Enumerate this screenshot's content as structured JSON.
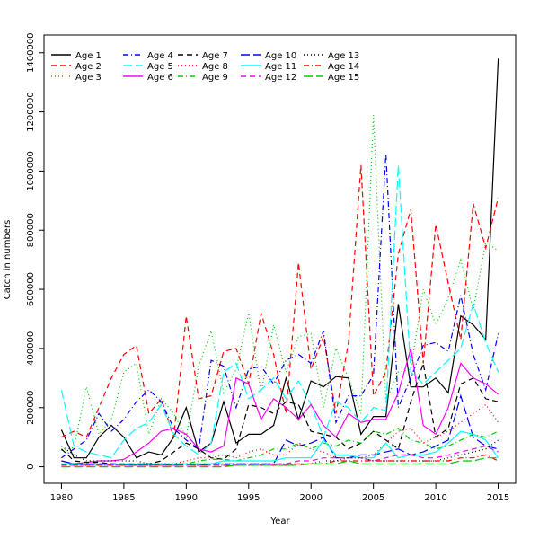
{
  "chart_data": {
    "type": "line",
    "title": "",
    "xlabel": "Year",
    "ylabel": "Catch in numbers",
    "xlim": [
      1978.6,
      2016.4
    ],
    "ylim": [
      -56000,
      1460000
    ],
    "x_ticks": [
      1980,
      1985,
      1990,
      1995,
      2000,
      2005,
      2010,
      2015
    ],
    "y_ticks": [
      0,
      200000,
      400000,
      600000,
      800000,
      1000000,
      1200000,
      1400000
    ],
    "grid": false,
    "legend_position": "top-left",
    "x": [
      1980,
      1981,
      1982,
      1983,
      1984,
      1985,
      1986,
      1987,
      1988,
      1989,
      1990,
      1991,
      1992,
      1993,
      1994,
      1995,
      1996,
      1997,
      1998,
      1999,
      2000,
      2001,
      2002,
      2003,
      2004,
      2005,
      2006,
      2007,
      2008,
      2009,
      2010,
      2011,
      2012,
      2013,
      2014,
      2015
    ],
    "series": [
      {
        "name": "Age 1",
        "color": "#000000",
        "dash": "",
        "values": [
          125000,
          30000,
          30000,
          100000,
          140000,
          100000,
          30000,
          50000,
          40000,
          100000,
          200000,
          50000,
          80000,
          220000,
          80000,
          110000,
          110000,
          140000,
          300000,
          160000,
          290000,
          270000,
          305000,
          300000,
          110000,
          170000,
          170000,
          550000,
          270000,
          270000,
          300000,
          250000,
          510000,
          480000,
          430000,
          1380000
        ]
      },
      {
        "name": "Age 2",
        "color": "#ff0000",
        "dash": "6,4",
        "values": [
          100000,
          120000,
          100000,
          200000,
          300000,
          380000,
          410000,
          180000,
          230000,
          100000,
          510000,
          230000,
          240000,
          390000,
          400000,
          280000,
          520000,
          380000,
          180000,
          690000,
          330000,
          440000,
          180000,
          420000,
          1020000,
          240000,
          320000,
          720000,
          870000,
          350000,
          820000,
          620000,
          430000,
          890000,
          740000,
          910000
        ]
      },
      {
        "name": "Age 3",
        "color": "#00cc00",
        "dash": "1,3",
        "values": [
          55000,
          65000,
          270000,
          110000,
          160000,
          320000,
          350000,
          110000,
          230000,
          180000,
          100000,
          340000,
          460000,
          250000,
          330000,
          520000,
          250000,
          480000,
          320000,
          440000,
          450000,
          200000,
          400000,
          300000,
          180000,
          1190000,
          220000,
          320000,
          330000,
          600000,
          480000,
          570000,
          700000,
          530000,
          760000,
          730000
        ]
      },
      {
        "name": "Age 4",
        "color": "#0000ff",
        "dash": "6,3,1,3",
        "values": [
          30000,
          60000,
          90000,
          180000,
          120000,
          160000,
          220000,
          260000,
          220000,
          130000,
          90000,
          60000,
          360000,
          340000,
          200000,
          330000,
          340000,
          280000,
          360000,
          380000,
          350000,
          460000,
          150000,
          240000,
          240000,
          310000,
          1060000,
          200000,
          300000,
          410000,
          420000,
          390000,
          580000,
          380000,
          260000,
          450000
        ]
      },
      {
        "name": "Age 5",
        "color": "#00ffff",
        "dash": "10,4",
        "values": [
          260000,
          70000,
          50000,
          40000,
          30000,
          90000,
          130000,
          150000,
          210000,
          110000,
          70000,
          40000,
          80000,
          320000,
          350000,
          230000,
          260000,
          300000,
          230000,
          290000,
          210000,
          100000,
          220000,
          200000,
          150000,
          200000,
          190000,
          1020000,
          320000,
          280000,
          320000,
          360000,
          400000,
          550000,
          420000,
          320000
        ]
      },
      {
        "name": "Age 6",
        "color": "#ff00ff",
        "dash": "",
        "values": [
          20000,
          10000,
          15000,
          20000,
          20000,
          25000,
          50000,
          80000,
          120000,
          130000,
          110000,
          60000,
          50000,
          70000,
          300000,
          280000,
          160000,
          230000,
          200000,
          160000,
          210000,
          140000,
          100000,
          180000,
          150000,
          160000,
          160000,
          250000,
          400000,
          140000,
          110000,
          200000,
          350000,
          300000,
          280000,
          245000
        ]
      },
      {
        "name": "Age 7",
        "color": "#000000",
        "dash": "6,4",
        "values": [
          60000,
          20000,
          15000,
          15000,
          10000,
          10000,
          10000,
          10000,
          20000,
          50000,
          80000,
          60000,
          30000,
          25000,
          60000,
          210000,
          200000,
          180000,
          220000,
          210000,
          120000,
          110000,
          100000,
          60000,
          80000,
          120000,
          90000,
          60000,
          220000,
          350000,
          100000,
          130000,
          280000,
          300000,
          230000,
          220000
        ]
      },
      {
        "name": "Age 8",
        "color": "#ff0000",
        "dash": "1,3",
        "values": [
          10000,
          10000,
          5000,
          5000,
          10000,
          10000,
          10000,
          10000,
          10000,
          10000,
          20000,
          30000,
          30000,
          40000,
          30000,
          50000,
          60000,
          40000,
          40000,
          80000,
          60000,
          50000,
          30000,
          30000,
          30000,
          40000,
          80000,
          120000,
          130000,
          80000,
          100000,
          120000,
          150000,
          180000,
          210000,
          150000
        ]
      },
      {
        "name": "Age 9",
        "color": "#00cc00",
        "dash": "6,3,1,3",
        "values": [
          5000,
          5000,
          5000,
          5000,
          5000,
          5000,
          5000,
          5000,
          5000,
          10000,
          10000,
          20000,
          25000,
          25000,
          20000,
          30000,
          40000,
          60000,
          60000,
          80000,
          60000,
          80000,
          70000,
          90000,
          80000,
          120000,
          110000,
          130000,
          90000,
          80000,
          60000,
          70000,
          90000,
          110000,
          100000,
          120000
        ]
      },
      {
        "name": "Age 10",
        "color": "#0000ff",
        "dash": "10,4",
        "values": [
          20000,
          10000,
          10000,
          10000,
          10000,
          5000,
          5000,
          5000,
          5000,
          5000,
          5000,
          5000,
          10000,
          10000,
          10000,
          10000,
          10000,
          10000,
          90000,
          70000,
          80000,
          100000,
          30000,
          30000,
          40000,
          40000,
          50000,
          60000,
          40000,
          50000,
          70000,
          90000,
          240000,
          100000,
          70000,
          60000
        ]
      },
      {
        "name": "Age 11",
        "color": "#00ffff",
        "dash": "",
        "values": [
          10000,
          10000,
          5000,
          5000,
          5000,
          10000,
          10000,
          10000,
          10000,
          10000,
          10000,
          10000,
          10000,
          20000,
          20000,
          20000,
          20000,
          20000,
          30000,
          30000,
          30000,
          90000,
          40000,
          40000,
          30000,
          30000,
          80000,
          30000,
          40000,
          40000,
          50000,
          80000,
          120000,
          110000,
          90000,
          30000
        ]
      },
      {
        "name": "Age 12",
        "color": "#ff00ff",
        "dash": "6,4",
        "values": [
          5000,
          5000,
          5000,
          5000,
          5000,
          5000,
          5000,
          5000,
          5000,
          5000,
          5000,
          5000,
          5000,
          5000,
          5000,
          5000,
          5000,
          10000,
          10000,
          20000,
          20000,
          30000,
          30000,
          30000,
          30000,
          20000,
          30000,
          40000,
          40000,
          30000,
          30000,
          40000,
          50000,
          60000,
          70000,
          50000
        ]
      },
      {
        "name": "Age 13",
        "color": "#000000",
        "dash": "1,3",
        "values": [
          70000,
          40000,
          20000,
          20000,
          20000,
          20000,
          20000,
          10000,
          10000,
          10000,
          10000,
          10000,
          10000,
          10000,
          10000,
          10000,
          10000,
          10000,
          10000,
          10000,
          10000,
          20000,
          20000,
          30000,
          30000,
          20000,
          20000,
          20000,
          20000,
          20000,
          20000,
          30000,
          40000,
          50000,
          60000,
          90000
        ]
      },
      {
        "name": "Age 14",
        "color": "#ff0000",
        "dash": "6,3,1,3",
        "values": [
          5000,
          5000,
          5000,
          5000,
          5000,
          5000,
          5000,
          5000,
          5000,
          5000,
          5000,
          5000,
          5000,
          5000,
          5000,
          5000,
          5000,
          5000,
          5000,
          10000,
          10000,
          10000,
          20000,
          20000,
          20000,
          20000,
          20000,
          20000,
          20000,
          20000,
          20000,
          20000,
          30000,
          30000,
          40000,
          20000
        ]
      },
      {
        "name": "Age 15",
        "color": "#00cc00",
        "dash": "10,4",
        "values": [
          0,
          0,
          0,
          0,
          0,
          0,
          0,
          0,
          0,
          0,
          0,
          0,
          0,
          0,
          5000,
          5000,
          5000,
          5000,
          5000,
          5000,
          10000,
          10000,
          10000,
          20000,
          10000,
          10000,
          10000,
          10000,
          10000,
          10000,
          10000,
          10000,
          20000,
          20000,
          30000,
          30000
        ]
      }
    ]
  }
}
